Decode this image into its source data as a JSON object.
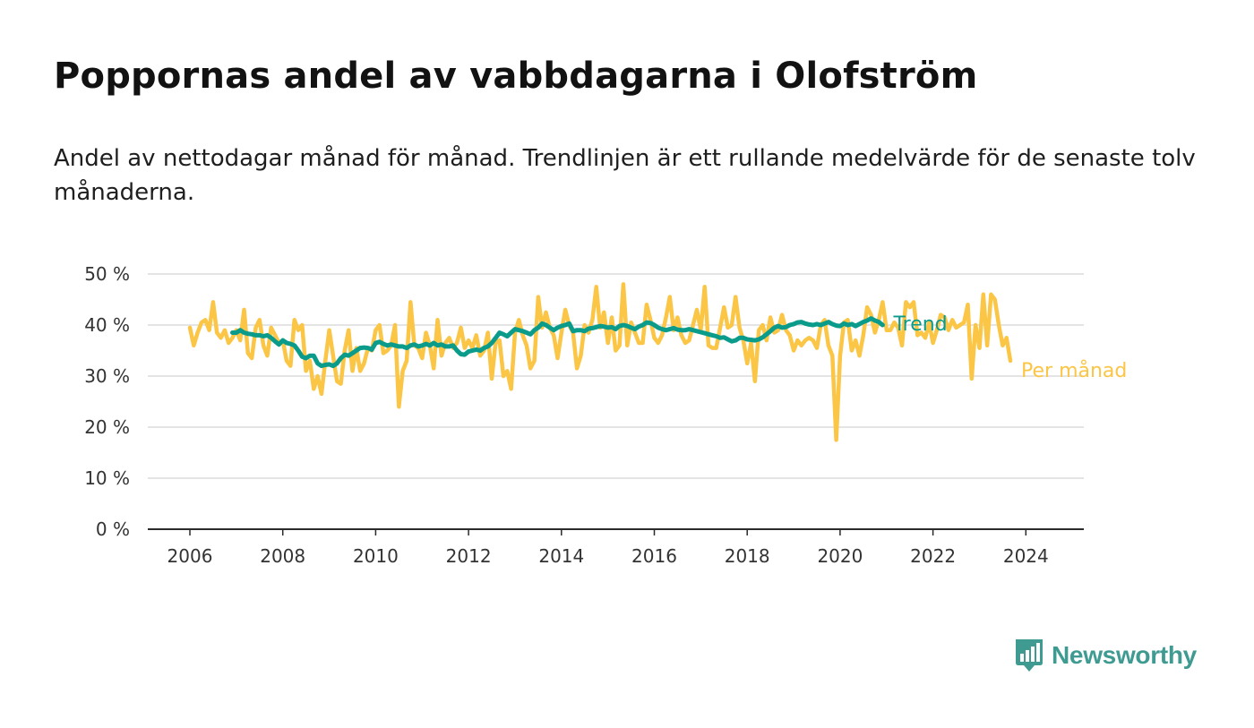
{
  "header": {
    "title": "Poppornas andel av vabbdagarna i Olofström",
    "subtitle": "Andel av nettodagar månad för månad. Trendlinjen är ett rullande medelvärde för de senaste tolv månaderna."
  },
  "logo": {
    "text": "Newsworthy",
    "color": "#3f9b91",
    "icon": "bar-chart-badge-icon"
  },
  "colors": {
    "trend": "#0b9b8a",
    "monthly": "#fbc545",
    "grid": "#dcdcdc",
    "axis": "#2a2a2a"
  },
  "chart_data": {
    "type": "line",
    "title": "Poppornas andel av vabbdagarna i Olofström",
    "xlabel": "",
    "ylabel": "",
    "ylim": [
      0,
      50
    ],
    "xlim": [
      2006.0,
      2024.42
    ],
    "y_ticks": [
      0,
      10,
      20,
      30,
      40,
      50
    ],
    "y_tick_labels": [
      "0 %",
      "10 %",
      "20 %",
      "30 %",
      "40 %",
      "50 %"
    ],
    "x_ticks": [
      2006,
      2008,
      2010,
      2012,
      2014,
      2016,
      2018,
      2020,
      2022,
      2024
    ],
    "x_tick_labels": [
      "2006",
      "2008",
      "2010",
      "2012",
      "2014",
      "2016",
      "2018",
      "2020",
      "2022",
      "2024"
    ],
    "grid": true,
    "legend": "right, end-of-line labels",
    "series": [
      {
        "name": "Per månad",
        "start": 2006.0,
        "step_months": 1,
        "values": [
          39.5,
          36.0,
          38.5,
          40.5,
          41.0,
          39.0,
          44.5,
          38.5,
          37.5,
          39.0,
          36.5,
          37.5,
          39.0,
          37.0,
          43.0,
          34.5,
          33.5,
          39.5,
          41.0,
          36.0,
          34.0,
          39.5,
          38.0,
          36.5,
          37.0,
          33.0,
          32.0,
          41.0,
          39.0,
          40.0,
          31.0,
          33.0,
          27.5,
          30.0,
          26.5,
          33.0,
          39.0,
          34.0,
          29.0,
          28.5,
          35.0,
          39.0,
          31.0,
          35.5,
          31.0,
          32.5,
          35.5,
          35.0,
          39.0,
          40.0,
          34.5,
          35.0,
          36.0,
          40.0,
          24.0,
          31.0,
          33.0,
          44.5,
          36.0,
          35.5,
          33.5,
          38.5,
          36.0,
          31.5,
          41.0,
          34.0,
          36.5,
          37.5,
          35.5,
          36.5,
          39.5,
          35.5,
          37.0,
          35.5,
          38.0,
          34.0,
          35.0,
          38.5,
          29.5,
          36.5,
          37.0,
          30.0,
          31.0,
          27.5,
          38.5,
          41.0,
          38.0,
          36.0,
          31.5,
          33.0,
          45.5,
          39.5,
          42.5,
          39.5,
          38.0,
          33.5,
          38.5,
          43.0,
          40.0,
          38.5,
          31.5,
          34.0,
          40.0,
          38.5,
          41.0,
          47.5,
          39.5,
          42.5,
          36.5,
          41.5,
          35.0,
          36.0,
          48.0,
          36.0,
          40.5,
          38.5,
          36.5,
          36.5,
          44.0,
          41.0,
          37.5,
          36.5,
          38.0,
          41.5,
          45.5,
          39.0,
          41.5,
          38.0,
          36.5,
          37.0,
          40.0,
          43.0,
          39.0,
          47.5,
          36.0,
          35.5,
          35.5,
          39.5,
          43.5,
          39.5,
          40.0,
          45.5,
          39.5,
          37.0,
          32.5,
          36.5,
          29.0,
          39.0,
          40.0,
          37.0,
          41.5,
          38.5,
          39.0,
          42.0,
          39.0,
          38.0,
          35.0,
          37.0,
          36.0,
          37.0,
          37.5,
          37.0,
          35.5,
          40.0,
          41.0,
          36.0,
          34.0,
          17.5,
          34.0,
          40.5,
          41.0,
          35.0,
          37.0,
          34.0,
          38.0,
          43.5,
          42.0,
          38.5,
          41.0,
          44.5,
          39.0,
          39.0,
          40.5,
          39.5,
          36.0,
          44.5,
          43.5,
          44.5,
          38.0,
          38.5,
          37.5,
          40.5,
          36.5,
          39.0,
          42.0,
          41.5,
          39.0,
          41.0,
          39.5,
          40.0,
          40.5,
          44.0,
          29.5,
          40.0,
          35.5,
          46.0,
          36.0,
          46.0,
          45.0,
          40.0,
          36.0,
          37.5,
          33.0
        ]
      },
      {
        "name": "Trend",
        "start": 2006.917,
        "step_months": 1,
        "values": [
          38.5,
          38.5,
          39.0,
          38.5,
          38.3,
          38.2,
          38.0,
          38.0,
          37.8,
          38.0,
          37.5,
          36.8,
          36.2,
          37.0,
          36.5,
          36.3,
          36.0,
          35.0,
          33.8,
          33.5,
          34.0,
          34.0,
          32.5,
          32.0,
          32.2,
          32.3,
          32.0,
          32.5,
          33.5,
          34.2,
          34.0,
          34.5,
          35.0,
          35.5,
          35.6,
          35.5,
          35.2,
          36.5,
          36.7,
          36.3,
          36.0,
          36.2,
          36.0,
          35.8,
          35.8,
          35.5,
          36.0,
          36.2,
          35.8,
          36.0,
          36.3,
          36.0,
          36.5,
          36.0,
          36.2,
          35.8,
          35.8,
          36.0,
          35.0,
          34.3,
          34.2,
          34.8,
          35.0,
          35.2,
          35.0,
          35.5,
          35.8,
          36.5,
          37.5,
          38.5,
          38.2,
          37.8,
          38.5,
          39.2,
          39.0,
          38.8,
          38.5,
          38.2,
          39.0,
          39.5,
          40.3,
          40.0,
          39.5,
          39.0,
          39.5,
          39.8,
          40.0,
          40.3,
          38.8,
          39.0,
          39.0,
          38.8,
          39.3,
          39.4,
          39.6,
          39.8,
          39.7,
          39.5,
          39.6,
          39.2,
          39.8,
          40.0,
          39.8,
          39.5,
          39.2,
          39.7,
          40.0,
          40.5,
          40.4,
          40.0,
          39.5,
          39.2,
          39.0,
          39.2,
          39.4,
          39.1,
          39.0,
          39.0,
          39.2,
          39.0,
          38.8,
          38.6,
          38.4,
          38.2,
          38.0,
          37.8,
          37.5,
          37.6,
          37.2,
          36.8,
          37.0,
          37.5,
          37.5,
          37.2,
          37.1,
          37.0,
          37.2,
          37.6,
          38.2,
          38.8,
          39.5,
          39.8,
          39.5,
          39.6,
          40.0,
          40.2,
          40.5,
          40.6,
          40.3,
          40.1,
          40.0,
          40.2,
          40.0,
          40.3,
          40.6,
          40.2,
          39.9,
          39.8,
          40.3,
          40.0,
          40.2,
          39.8,
          40.2,
          40.6,
          40.9,
          41.3,
          40.9,
          40.6,
          40.0
        ]
      }
    ]
  }
}
